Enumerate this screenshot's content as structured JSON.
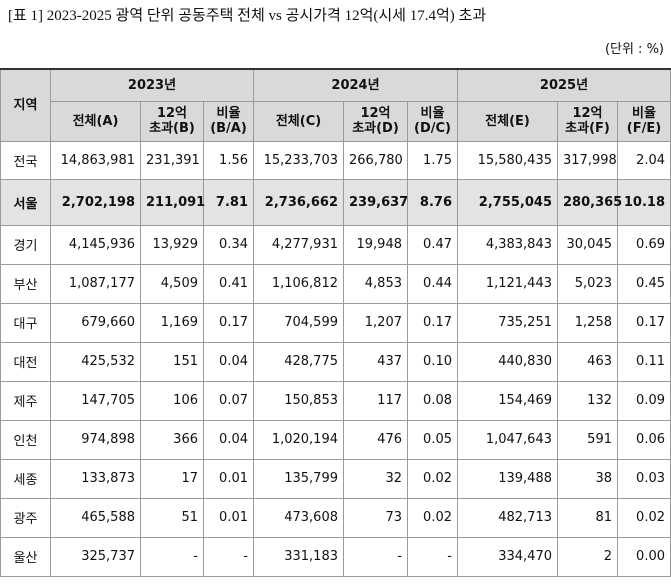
{
  "title": "[표 1] 2023-2025 광역 단위 공동주택 전체 vs 공시가격 12억(시세 17.4억) 초과",
  "unit": "(단위 : %)",
  "table": {
    "header": {
      "region": "지역",
      "years": [
        "2023년",
        "2024년",
        "2025년"
      ],
      "subcols": [
        "전체(A)",
        "12억\n초과(B)",
        "비율\n(B/A)",
        "전체(C)",
        "12억\n초과(D)",
        "비율\n(D/C)",
        "전체(E)",
        "12억\n초과(F)",
        "비율\n(F/E)"
      ]
    },
    "rows": [
      [
        "전국",
        "14,863,981",
        "231,391",
        "1.56",
        "15,233,703",
        "266,780",
        "1.75",
        "15,580,435",
        "317,998",
        "2.04"
      ],
      [
        "서울",
        "2,702,198",
        "211,091",
        "7.81",
        "2,736,662",
        "239,637",
        "8.76",
        "2,755,045",
        "280,365",
        "10.18"
      ],
      [
        "경기",
        "4,145,936",
        "13,929",
        "0.34",
        "4,277,931",
        "19,948",
        "0.47",
        "4,383,843",
        "30,045",
        "0.69"
      ],
      [
        "부산",
        "1,087,177",
        "4,509",
        "0.41",
        "1,106,812",
        "4,853",
        "0.44",
        "1,121,443",
        "5,023",
        "0.45"
      ],
      [
        "대구",
        "679,660",
        "1,169",
        "0.17",
        "704,599",
        "1,207",
        "0.17",
        "735,251",
        "1,258",
        "0.17"
      ],
      [
        "대전",
        "425,532",
        "151",
        "0.04",
        "428,775",
        "437",
        "0.10",
        "440,830",
        "463",
        "0.11"
      ],
      [
        "제주",
        "147,705",
        "106",
        "0.07",
        "150,853",
        "117",
        "0.08",
        "154,469",
        "132",
        "0.09"
      ],
      [
        "인천",
        "974,898",
        "366",
        "0.04",
        "1,020,194",
        "476",
        "0.05",
        "1,047,643",
        "591",
        "0.06"
      ],
      [
        "세종",
        "133,873",
        "17",
        "0.01",
        "135,799",
        "32",
        "0.02",
        "139,488",
        "38",
        "0.03"
      ],
      [
        "광주",
        "465,588",
        "51",
        "0.01",
        "473,608",
        "73",
        "0.02",
        "482,713",
        "81",
        "0.02"
      ],
      [
        "울산",
        "325,737",
        "-",
        "-",
        "331,183",
        "-",
        "-",
        "334,470",
        "2",
        "0.00"
      ]
    ],
    "highlight_row": 1
  }
}
